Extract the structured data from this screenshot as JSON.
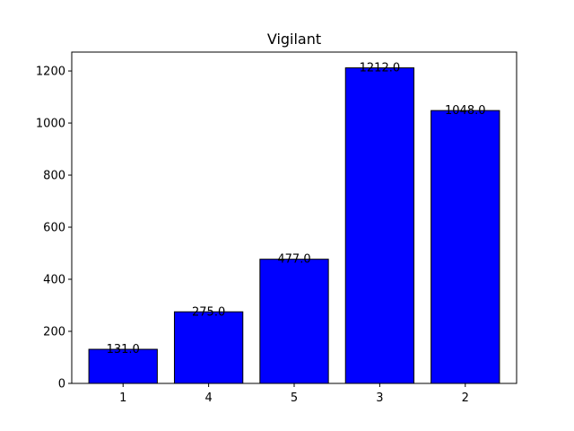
{
  "chart_data": {
    "type": "bar",
    "title": "Vigilant",
    "xlabel": "",
    "ylabel": "",
    "categories": [
      "1",
      "4",
      "5",
      "3",
      "2"
    ],
    "values": [
      131.0,
      275.0,
      477.0,
      1212.0,
      1048.0
    ],
    "data_labels": [
      "131.0",
      "275.0",
      "477.0",
      "1212.0",
      "1048.0"
    ],
    "ylim": [
      0,
      1272.6
    ],
    "yticks": [
      0,
      200,
      400,
      600,
      800,
      1000,
      1200
    ],
    "bar_color": "#0000ff",
    "bar_edge_color": "#000000",
    "grid": false,
    "legend": "none"
  }
}
